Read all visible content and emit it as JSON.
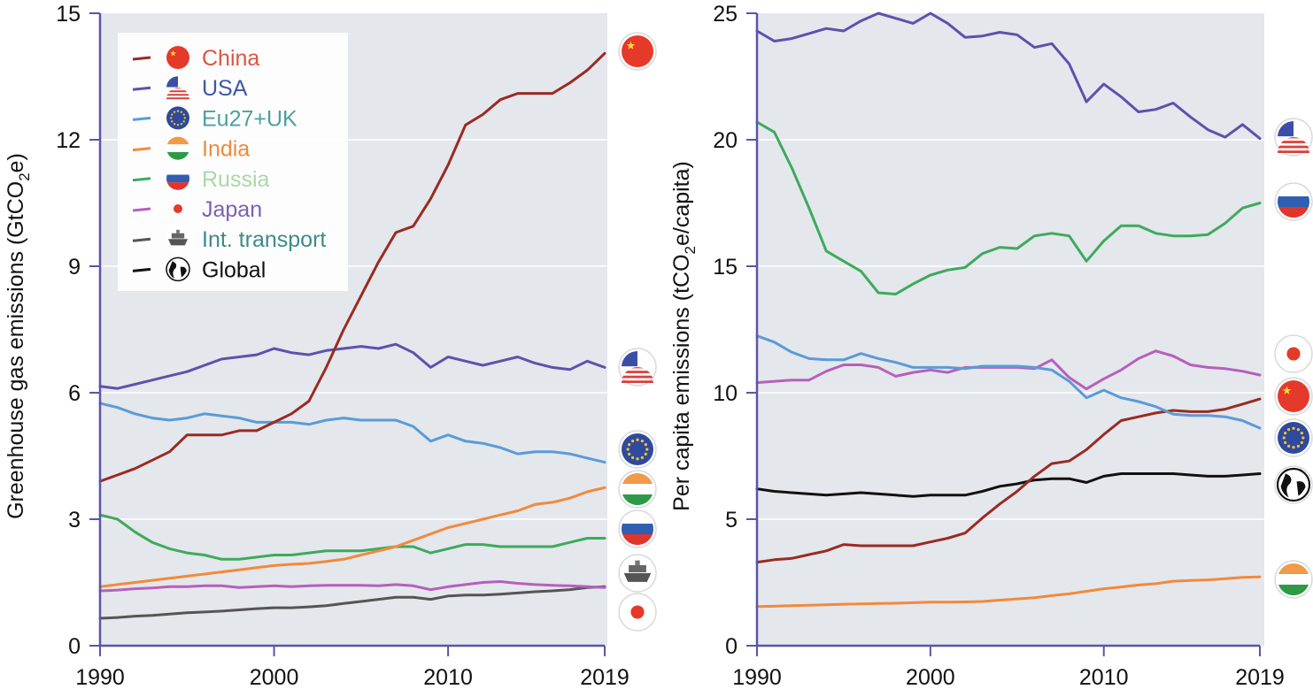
{
  "colors": {
    "panel_bg": "#e4e7ec",
    "axis": "#5b55a8",
    "grid": "#ffffff",
    "china": "#9a2a22",
    "usa": "#5b52ad",
    "eu": "#5a9bd8",
    "india": "#f08a3c",
    "russia": "#3daa5c",
    "japan": "#b75fbc",
    "transport": "#555555",
    "global": "#111111"
  },
  "chart_data": [
    {
      "type": "line",
      "ylabel": "Greenhouse gas emissions (GtCO₂e)",
      "ylabel_main": "Greenhouse gas emissions (GtCO",
      "ylabel_sub": "2",
      "ylabel_end": "e)",
      "xlim": [
        1990,
        2019
      ],
      "ylim": [
        0,
        15
      ],
      "xticks": [
        1990,
        2000,
        2010,
        2019
      ],
      "xtick_labels": [
        "1990",
        "2000",
        "2010",
        "2019"
      ],
      "yticks": [
        0,
        3,
        6,
        9,
        12,
        15
      ],
      "ytick_labels": [
        "0",
        "3",
        "6",
        "9",
        "12",
        "15"
      ],
      "grid": "horizontal",
      "legend": {
        "placement": "top-left",
        "entries": [
          {
            "key": "china",
            "label": "China",
            "text_color": "#e0533f"
          },
          {
            "key": "usa",
            "label": "USA",
            "text_color": "#3f57a8"
          },
          {
            "key": "eu",
            "label": "Eu27+UK",
            "text_color": "#4f9e9e"
          },
          {
            "key": "india",
            "label": "India",
            "text_color": "#f08a3c"
          },
          {
            "key": "russia",
            "label": "Russia",
            "text_color": "#a9d8a9"
          },
          {
            "key": "japan",
            "label": "Japan",
            "text_color": "#7d5fb3"
          },
          {
            "key": "transport",
            "label": "Int. transport",
            "text_color": "#3f8a8a"
          },
          {
            "key": "global",
            "label": "Global",
            "text_color": "#111111"
          }
        ]
      },
      "x": [
        1990,
        1991,
        1992,
        1993,
        1994,
        1995,
        1996,
        1997,
        1998,
        1999,
        2000,
        2001,
        2002,
        2003,
        2004,
        2005,
        2006,
        2007,
        2008,
        2009,
        2010,
        2011,
        2012,
        2013,
        2014,
        2015,
        2016,
        2017,
        2018,
        2019
      ],
      "series": [
        {
          "key": "china",
          "name": "China",
          "end_icon": "china-flag-icon",
          "values": [
            3.9,
            4.05,
            4.2,
            4.4,
            4.6,
            5.0,
            5.0,
            5.0,
            5.1,
            5.1,
            5.3,
            5.5,
            5.8,
            6.6,
            7.5,
            8.3,
            9.1,
            9.8,
            9.95,
            10.6,
            11.4,
            12.35,
            12.6,
            12.95,
            13.1,
            13.1,
            13.1,
            13.35,
            13.65,
            14.05
          ]
        },
        {
          "key": "usa",
          "name": "USA",
          "end_icon": "usa-flag-icon",
          "values": [
            6.15,
            6.1,
            6.2,
            6.3,
            6.4,
            6.5,
            6.65,
            6.8,
            6.85,
            6.9,
            7.05,
            6.95,
            6.9,
            7.0,
            7.05,
            7.1,
            7.05,
            7.15,
            6.95,
            6.6,
            6.85,
            6.75,
            6.65,
            6.75,
            6.85,
            6.7,
            6.6,
            6.55,
            6.75,
            6.6
          ]
        },
        {
          "key": "eu",
          "name": "Eu27+UK",
          "end_icon": "eu-flag-icon",
          "values": [
            5.75,
            5.65,
            5.5,
            5.4,
            5.35,
            5.4,
            5.5,
            5.45,
            5.4,
            5.3,
            5.3,
            5.3,
            5.25,
            5.35,
            5.4,
            5.35,
            5.35,
            5.35,
            5.2,
            4.85,
            5.0,
            4.85,
            4.8,
            4.7,
            4.55,
            4.6,
            4.6,
            4.55,
            4.45,
            4.35
          ]
        },
        {
          "key": "india",
          "name": "India",
          "end_icon": "india-flag-icon",
          "values": [
            1.4,
            1.45,
            1.5,
            1.55,
            1.6,
            1.65,
            1.7,
            1.75,
            1.8,
            1.85,
            1.9,
            1.93,
            1.95,
            2.0,
            2.05,
            2.15,
            2.25,
            2.35,
            2.5,
            2.65,
            2.8,
            2.9,
            3.0,
            3.1,
            3.2,
            3.35,
            3.4,
            3.5,
            3.65,
            3.75
          ]
        },
        {
          "key": "russia",
          "name": "Russia",
          "end_icon": "russia-flag-icon",
          "values": [
            3.1,
            3.0,
            2.7,
            2.45,
            2.3,
            2.2,
            2.15,
            2.05,
            2.05,
            2.1,
            2.15,
            2.15,
            2.2,
            2.25,
            2.25,
            2.25,
            2.3,
            2.35,
            2.35,
            2.2,
            2.3,
            2.4,
            2.4,
            2.35,
            2.35,
            2.35,
            2.35,
            2.45,
            2.55,
            2.55
          ]
        },
        {
          "key": "japan",
          "name": "Japan",
          "end_icon": "japan-flag-icon",
          "values": [
            1.3,
            1.32,
            1.35,
            1.37,
            1.4,
            1.4,
            1.42,
            1.42,
            1.38,
            1.4,
            1.42,
            1.4,
            1.42,
            1.43,
            1.43,
            1.43,
            1.42,
            1.45,
            1.42,
            1.33,
            1.4,
            1.45,
            1.5,
            1.52,
            1.48,
            1.45,
            1.43,
            1.42,
            1.4,
            1.38
          ]
        },
        {
          "key": "transport",
          "name": "Int. transport",
          "end_icon": "ship-icon",
          "values": [
            0.65,
            0.67,
            0.7,
            0.72,
            0.75,
            0.78,
            0.8,
            0.82,
            0.85,
            0.88,
            0.9,
            0.9,
            0.92,
            0.95,
            1.0,
            1.05,
            1.1,
            1.15,
            1.15,
            1.1,
            1.18,
            1.2,
            1.2,
            1.22,
            1.25,
            1.28,
            1.3,
            1.33,
            1.38,
            1.4
          ]
        }
      ]
    },
    {
      "type": "line",
      "ylabel": "Per capita emissions (tCO₂e/capita)",
      "ylabel_main": "Per capita emissions (tCO",
      "ylabel_sub": "2",
      "ylabel_end": "e/capita)",
      "xlim": [
        1990,
        2019
      ],
      "ylim": [
        0,
        25
      ],
      "xticks": [
        1990,
        2000,
        2010,
        2019
      ],
      "xtick_labels": [
        "1990",
        "2000",
        "2010",
        "2019"
      ],
      "yticks": [
        0,
        5,
        10,
        15,
        20,
        25
      ],
      "ytick_labels": [
        "0",
        "5",
        "10",
        "15",
        "20",
        "25"
      ],
      "grid": "horizontal",
      "x": [
        1990,
        1991,
        1992,
        1993,
        1994,
        1995,
        1996,
        1997,
        1998,
        1999,
        2000,
        2001,
        2002,
        2003,
        2004,
        2005,
        2006,
        2007,
        2008,
        2009,
        2010,
        2011,
        2012,
        2013,
        2014,
        2015,
        2016,
        2017,
        2018,
        2019
      ],
      "series": [
        {
          "key": "usa",
          "name": "USA",
          "end_icon": "usa-flag-icon",
          "values": [
            24.3,
            23.9,
            24.0,
            24.2,
            24.4,
            24.3,
            24.7,
            25.0,
            24.8,
            24.6,
            25.0,
            24.6,
            24.05,
            24.1,
            24.25,
            24.15,
            23.65,
            23.8,
            23.0,
            21.5,
            22.2,
            21.7,
            21.1,
            21.2,
            21.45,
            20.9,
            20.4,
            20.1,
            20.6,
            20.05
          ]
        },
        {
          "key": "russia",
          "name": "Russia",
          "end_icon": "russia-flag-icon",
          "values": [
            20.7,
            20.3,
            18.9,
            17.3,
            15.6,
            15.2,
            14.8,
            13.95,
            13.9,
            14.3,
            14.65,
            14.85,
            14.95,
            15.5,
            15.75,
            15.7,
            16.2,
            16.3,
            16.2,
            15.2,
            16.0,
            16.6,
            16.6,
            16.3,
            16.2,
            16.2,
            16.25,
            16.7,
            17.3,
            17.5
          ]
        },
        {
          "key": "eu",
          "name": "Eu27+UK",
          "end_icon": "eu-flag-icon",
          "values": [
            12.25,
            12.0,
            11.6,
            11.35,
            11.3,
            11.3,
            11.55,
            11.35,
            11.2,
            11.0,
            11.0,
            11.0,
            10.95,
            11.05,
            11.05,
            11.05,
            11.0,
            10.9,
            10.45,
            9.8,
            10.1,
            9.8,
            9.65,
            9.45,
            9.15,
            9.1,
            9.1,
            9.05,
            8.9,
            8.6
          ]
        },
        {
          "key": "japan",
          "name": "Japan",
          "end_icon": "japan-flag-icon",
          "values": [
            10.4,
            10.45,
            10.5,
            10.5,
            10.85,
            11.1,
            11.1,
            11.0,
            10.65,
            10.8,
            10.9,
            10.8,
            11.0,
            11.0,
            11.0,
            11.0,
            10.95,
            11.3,
            10.6,
            10.15,
            10.55,
            10.9,
            11.35,
            11.65,
            11.45,
            11.1,
            11.0,
            10.95,
            10.85,
            10.7
          ]
        },
        {
          "key": "china",
          "name": "China",
          "end_icon": "china-flag-icon",
          "values": [
            3.3,
            3.4,
            3.45,
            3.6,
            3.75,
            4.0,
            3.95,
            3.95,
            3.95,
            3.95,
            4.1,
            4.25,
            4.45,
            5.05,
            5.6,
            6.1,
            6.7,
            7.2,
            7.3,
            7.75,
            8.35,
            8.9,
            9.05,
            9.2,
            9.3,
            9.25,
            9.25,
            9.35,
            9.55,
            9.75
          ]
        },
        {
          "key": "global",
          "name": "Global",
          "end_icon": "globe-icon",
          "values": [
            6.2,
            6.1,
            6.05,
            6.0,
            5.95,
            6.0,
            6.05,
            6.0,
            5.95,
            5.9,
            5.95,
            5.95,
            5.95,
            6.1,
            6.3,
            6.4,
            6.55,
            6.6,
            6.6,
            6.45,
            6.7,
            6.8,
            6.8,
            6.8,
            6.8,
            6.75,
            6.7,
            6.7,
            6.75,
            6.8
          ]
        },
        {
          "key": "india",
          "name": "India",
          "end_icon": "india-flag-icon",
          "values": [
            1.55,
            1.56,
            1.58,
            1.6,
            1.62,
            1.64,
            1.65,
            1.67,
            1.68,
            1.7,
            1.72,
            1.72,
            1.73,
            1.75,
            1.8,
            1.85,
            1.9,
            1.98,
            2.05,
            2.15,
            2.25,
            2.32,
            2.4,
            2.45,
            2.55,
            2.58,
            2.6,
            2.65,
            2.7,
            2.72
          ]
        }
      ]
    }
  ]
}
